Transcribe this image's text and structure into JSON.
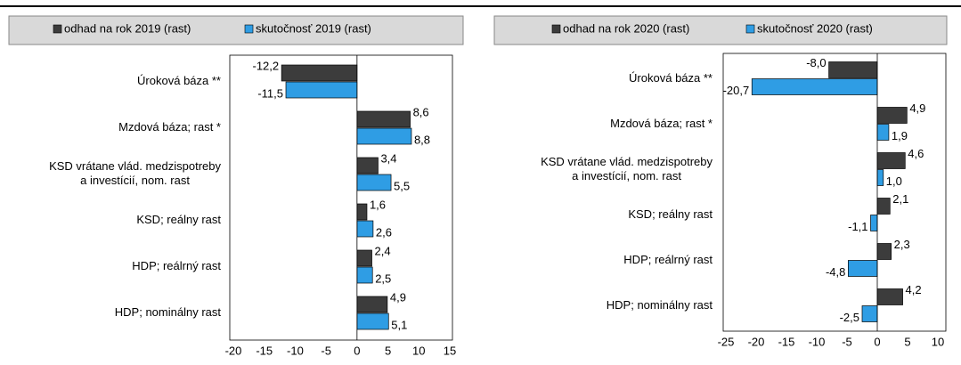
{
  "chart_data": [
    {
      "type": "bar",
      "categories": [
        "Úroková báza **",
        "Mzdová báza; rast *",
        "KSD vrátane vlád. medzispotreby\na investícií, nom. rast",
        "KSD; reálny rast",
        "HDP; reálrný rast",
        "HDP; nominálny rast"
      ],
      "series": [
        {
          "name": "odhad na rok 2019 (rast)",
          "color": "#3c3c3c",
          "values": [
            -12.2,
            8.6,
            3.4,
            1.6,
            2.4,
            4.9
          ],
          "value_labels": [
            "-12,2",
            "8,6",
            "3,4",
            "1,6",
            "2,4",
            "4,9"
          ]
        },
        {
          "name": "skutočnosť 2019 (rast)",
          "color": "#2f9de4",
          "values": [
            -11.5,
            8.8,
            5.5,
            2.6,
            2.5,
            5.1
          ],
          "value_labels": [
            "-11,5",
            "8,8",
            "5,5",
            "2,6",
            "2,5",
            "5,1"
          ]
        }
      ],
      "xlim": [
        -20,
        15
      ],
      "xticks": [
        -20,
        -15,
        -10,
        -5,
        0,
        5,
        10,
        15
      ]
    },
    {
      "type": "bar",
      "categories": [
        "Úroková báza **",
        "Mzdová báza; rast *",
        "KSD vrátane vlád. medzispotreby\na investícií, nom. rast",
        "KSD; reálny rast",
        "HDP; reálrný rast",
        "HDP; nominálny rast"
      ],
      "series": [
        {
          "name": "odhad na rok 2020 (rast)",
          "color": "#3c3c3c",
          "values": [
            -8.0,
            4.9,
            4.6,
            2.1,
            2.3,
            4.2
          ],
          "value_labels": [
            "-8,0",
            "4,9",
            "4,6",
            "2,1",
            "2,3",
            "4,2"
          ]
        },
        {
          "name": "skutočnosť 2020 (rast)",
          "color": "#2f9de4",
          "values": [
            -20.7,
            1.9,
            1.0,
            -1.1,
            -4.8,
            -2.5
          ],
          "value_labels": [
            "-20,7",
            "1,9",
            "1,0",
            "-1,1",
            "-4,8",
            "-2,5"
          ]
        }
      ],
      "xlim": [
        -25,
        10
      ],
      "xticks": [
        -25,
        -20,
        -15,
        -10,
        -5,
        0,
        5,
        10
      ]
    }
  ]
}
